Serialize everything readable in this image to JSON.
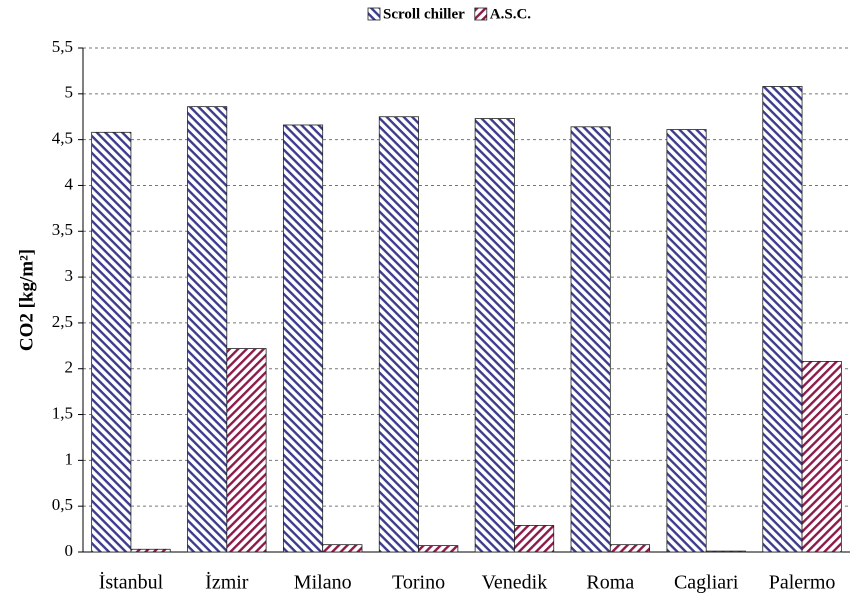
{
  "chart_data": {
    "type": "bar",
    "y_label": "CO2 [kg/m²]",
    "categories": [
      "İstanbul",
      "İzmir",
      "Milano",
      "Torino",
      "Venedik",
      "Roma",
      "Cagliari",
      "Palermo"
    ],
    "series": [
      {
        "name": "Scroll chiller",
        "color": "#3c3c8c",
        "values": [
          4.58,
          4.86,
          4.66,
          4.75,
          4.73,
          4.64,
          4.61,
          5.08
        ]
      },
      {
        "name": "A.S.C.",
        "color": "#8c1a4a",
        "values": [
          0.03,
          2.22,
          0.08,
          0.07,
          0.29,
          0.08,
          0.01,
          2.08
        ]
      }
    ],
    "ylim": [
      0,
      5.5
    ],
    "yticks": [
      0,
      {
        "value": 0.5,
        "label": "0,5"
      },
      1,
      {
        "value": 1.5,
        "label": "1,5"
      },
      2,
      {
        "value": 2.5,
        "label": "2,5"
      },
      3,
      {
        "value": 3.5,
        "label": "3,5"
      },
      4,
      {
        "value": 4.5,
        "label": "4,5"
      },
      5,
      {
        "value": 5.5,
        "label": "5,5"
      }
    ],
    "grid": true
  }
}
